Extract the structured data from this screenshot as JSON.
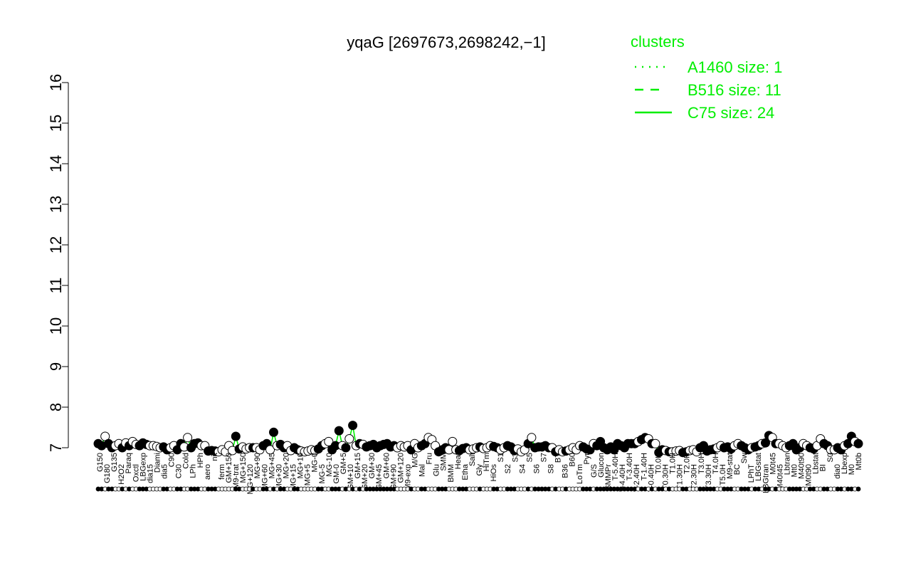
{
  "chart_data": {
    "type": "scatter",
    "title": "yqaG [2697673,2698242,−1]",
    "xlabel": "",
    "ylabel": "",
    "ylim": [
      7,
      16
    ],
    "yticks": [
      "7",
      "8",
      "9",
      "10",
      "11",
      "12",
      "13",
      "14",
      "15",
      "16"
    ],
    "grid": false,
    "legend": {
      "title": "clusters",
      "position": "top-right",
      "color": "#00ee00",
      "entries": [
        {
          "label": "A1460 size: 1",
          "style": "dotted"
        },
        {
          "label": "B516 size: 11",
          "style": "dashed"
        },
        {
          "label": "C75 size: 24",
          "style": "solid"
        }
      ]
    },
    "colors": {
      "series_line": "#00ee00",
      "filled_point": "#000000",
      "open_point": "#ffffff",
      "axis": "#000000"
    },
    "category_labels": [
      "G150",
      "G180",
      "G135",
      "H2O2",
      "Paraq",
      "Oxctl",
      "LBGexp",
      "dia15",
      "Diami",
      "dia5",
      "C90",
      "C30",
      "Cold",
      "LPh",
      "HPh",
      "aero",
      "nit",
      "ferm",
      "GM+150",
      "M9-trat",
      "MG+150",
      "MG+120",
      "MG+90",
      "MG+60",
      "MG+45",
      "MG+30",
      "MG+20",
      "MG+15",
      "MG+10",
      "MG+5",
      "MG-0",
      "MG-5",
      "MG-10",
      "GM-0",
      "GM+5",
      "GM+10",
      "GM+15",
      "GM+20",
      "GM+30",
      "GM+45",
      "GM+60",
      "GM+90",
      "GM+120",
      "M9-exp",
      "M/G",
      "Mal",
      "Fru",
      "Glu",
      "SMM",
      "BMM",
      "Heat",
      "Etha",
      "Salt",
      "Gly",
      "HiTm",
      "HiOs",
      "S1",
      "S2",
      "S3",
      "S4",
      "S5",
      "S6",
      "S7",
      "S8",
      "BT",
      "B36",
      "B60",
      "LoTm",
      "Pyr",
      "G/S",
      "Glucon",
      "SMMPr",
      "T-5.40H",
      "T-4.40H",
      "T-3.40H",
      "T-2.40H",
      "T-1.40H",
      "T-0.40H",
      "T0.0H",
      "T0.30H",
      "T1.0H",
      "T1.30H",
      "T2.0H",
      "T2.30H",
      "T3.0H",
      "T3.30H",
      "T4.0H",
      "T5.0H",
      "M9-stat",
      "BC",
      "Sw",
      "LPhT",
      "LBGstat",
      "LBGtran",
      "M0t45",
      "M40t45",
      "Lbtran",
      "Mt0",
      "M40t90",
      "M0t90",
      "Lbstat",
      "BI",
      "S0",
      "dia0",
      "Lbexp",
      "M0",
      "Mt0b"
    ],
    "points": [
      {
        "x": 1,
        "y": 7.1,
        "f": 1
      },
      {
        "x": 2,
        "y": 7.05,
        "f": 1
      },
      {
        "x": 3,
        "y": 7.28,
        "f": 0
      },
      {
        "x": 4,
        "y": 7.1,
        "f": 1
      },
      {
        "x": 5,
        "y": 7.0,
        "f": 1
      },
      {
        "x": 6,
        "y": 7.05,
        "f": 0
      },
      {
        "x": 7,
        "y": 7.1,
        "f": 0
      },
      {
        "x": 8,
        "y": 7.0,
        "f": 1
      },
      {
        "x": 9,
        "y": 7.12,
        "f": 0
      },
      {
        "x": 10,
        "y": 7.05,
        "f": 1
      },
      {
        "x": 11,
        "y": 7.15,
        "f": 0
      },
      {
        "x": 12,
        "y": 7.08,
        "f": 0
      },
      {
        "x": 13,
        "y": 7.05,
        "f": 1
      },
      {
        "x": 14,
        "y": 7.12,
        "f": 1
      },
      {
        "x": 15,
        "y": 7.08,
        "f": 1
      },
      {
        "x": 16,
        "y": 7.05,
        "f": 0
      },
      {
        "x": 17,
        "y": 7.05,
        "f": 0
      },
      {
        "x": 18,
        "y": 7.03,
        "f": 0
      },
      {
        "x": 19,
        "y": 7.0,
        "f": 0
      },
      {
        "x": 20,
        "y": 7.02,
        "f": 1
      },
      {
        "x": 21,
        "y": 6.95,
        "f": 1
      },
      {
        "x": 22,
        "y": 7.0,
        "f": 0
      },
      {
        "x": 23,
        "y": 7.05,
        "f": 0
      },
      {
        "x": 24,
        "y": 6.95,
        "f": 1
      },
      {
        "x": 25,
        "y": 7.1,
        "f": 1
      },
      {
        "x": 26,
        "y": 7.02,
        "f": 0
      },
      {
        "x": 27,
        "y": 7.25,
        "f": 0
      },
      {
        "x": 28,
        "y": 7.0,
        "f": 1
      },
      {
        "x": 29,
        "y": 7.1,
        "f": 1
      },
      {
        "x": 30,
        "y": 7.12,
        "f": 1
      },
      {
        "x": 31,
        "y": 7.05,
        "f": 0
      },
      {
        "x": 32,
        "y": 7.05,
        "f": 0
      },
      {
        "x": 33,
        "y": 6.92,
        "f": 1
      },
      {
        "x": 34,
        "y": 6.93,
        "f": 1
      },
      {
        "x": 35,
        "y": 6.92,
        "f": 1
      },
      {
        "x": 36,
        "y": 6.9,
        "f": 0
      },
      {
        "x": 37,
        "y": 6.95,
        "f": 0
      },
      {
        "x": 38,
        "y": 6.9,
        "f": 0
      },
      {
        "x": 39,
        "y": 7.05,
        "f": 0
      },
      {
        "x": 40,
        "y": 6.93,
        "f": 0
      },
      {
        "x": 41,
        "y": 7.28,
        "f": 1
      },
      {
        "x": 42,
        "y": 6.97,
        "f": 1
      },
      {
        "x": 43,
        "y": 7.02,
        "f": 0
      },
      {
        "x": 44,
        "y": 6.97,
        "f": 0
      },
      {
        "x": 45,
        "y": 7.0,
        "f": 0
      },
      {
        "x": 46,
        "y": 7.0,
        "f": 1
      },
      {
        "x": 47,
        "y": 7.0,
        "f": 0
      },
      {
        "x": 48,
        "y": 6.95,
        "f": 0
      },
      {
        "x": 49,
        "y": 7.05,
        "f": 1
      },
      {
        "x": 50,
        "y": 7.1,
        "f": 1
      },
      {
        "x": 51,
        "y": 6.95,
        "f": 0
      },
      {
        "x": 52,
        "y": 7.38,
        "f": 1
      },
      {
        "x": 53,
        "y": 7.05,
        "f": 0
      },
      {
        "x": 54,
        "y": 7.08,
        "f": 1
      },
      {
        "x": 55,
        "y": 7.0,
        "f": 1
      },
      {
        "x": 56,
        "y": 7.05,
        "f": 0
      },
      {
        "x": 57,
        "y": 6.93,
        "f": 0
      },
      {
        "x": 58,
        "y": 7.0,
        "f": 1
      },
      {
        "x": 59,
        "y": 6.95,
        "f": 1
      },
      {
        "x": 60,
        "y": 6.92,
        "f": 0
      },
      {
        "x": 61,
        "y": 6.9,
        "f": 0
      },
      {
        "x": 62,
        "y": 6.92,
        "f": 0
      },
      {
        "x": 63,
        "y": 6.95,
        "f": 0
      },
      {
        "x": 64,
        "y": 6.93,
        "f": 0
      },
      {
        "x": 65,
        "y": 6.97,
        "f": 1
      },
      {
        "x": 66,
        "y": 7.05,
        "f": 1
      },
      {
        "x": 67,
        "y": 7.1,
        "f": 0
      },
      {
        "x": 68,
        "y": 7.15,
        "f": 0
      },
      {
        "x": 69,
        "y": 6.95,
        "f": 1
      },
      {
        "x": 70,
        "y": 7.05,
        "f": 1
      },
      {
        "x": 71,
        "y": 7.42,
        "f": 1
      },
      {
        "x": 72,
        "y": 7.05,
        "f": 0
      },
      {
        "x": 73,
        "y": 7.0,
        "f": 1
      },
      {
        "x": 74,
        "y": 7.22,
        "f": 0
      },
      {
        "x": 75,
        "y": 7.55,
        "f": 1
      },
      {
        "x": 76,
        "y": 7.05,
        "f": 0
      },
      {
        "x": 77,
        "y": 7.1,
        "f": 1
      },
      {
        "x": 78,
        "y": 7.08,
        "f": 0
      },
      {
        "x": 79,
        "y": 7.02,
        "f": 1
      },
      {
        "x": 80,
        "y": 7.05,
        "f": 1
      },
      {
        "x": 81,
        "y": 7.08,
        "f": 1
      },
      {
        "x": 82,
        "y": 7.0,
        "f": 1
      },
      {
        "x": 83,
        "y": 7.05,
        "f": 1
      },
      {
        "x": 84,
        "y": 7.08,
        "f": 1
      },
      {
        "x": 85,
        "y": 7.1,
        "f": 1
      },
      {
        "x": 86,
        "y": 7.02,
        "f": 1
      },
      {
        "x": 87,
        "y": 7.05,
        "f": 1
      },
      {
        "x": 88,
        "y": 7.0,
        "f": 0
      },
      {
        "x": 89,
        "y": 7.05,
        "f": 0
      },
      {
        "x": 90,
        "y": 7.02,
        "f": 0
      },
      {
        "x": 91,
        "y": 7.05,
        "f": 0
      },
      {
        "x": 92,
        "y": 6.95,
        "f": 1
      },
      {
        "x": 93,
        "y": 7.1,
        "f": 0
      },
      {
        "x": 94,
        "y": 7.0,
        "f": 0
      },
      {
        "x": 95,
        "y": 7.05,
        "f": 1
      },
      {
        "x": 96,
        "y": 7.1,
        "f": 1
      },
      {
        "x": 97,
        "y": 7.25,
        "f": 0
      },
      {
        "x": 98,
        "y": 7.2,
        "f": 0
      },
      {
        "x": 99,
        "y": 7.05,
        "f": 0
      },
      {
        "x": 100,
        "y": 6.9,
        "f": 1
      },
      {
        "x": 101,
        "y": 6.95,
        "f": 1
      },
      {
        "x": 102,
        "y": 7.0,
        "f": 1
      },
      {
        "x": 103,
        "y": 6.95,
        "f": 0
      },
      {
        "x": 104,
        "y": 7.15,
        "f": 0
      },
      {
        "x": 105,
        "y": 6.95,
        "f": 0
      },
      {
        "x": 106,
        "y": 6.93,
        "f": 1
      },
      {
        "x": 107,
        "y": 6.98,
        "f": 1
      },
      {
        "x": 108,
        "y": 7.0,
        "f": 1
      },
      {
        "x": 109,
        "y": 6.95,
        "f": 0
      },
      {
        "x": 110,
        "y": 6.97,
        "f": 0
      },
      {
        "x": 111,
        "y": 7.0,
        "f": 0
      },
      {
        "x": 112,
        "y": 7.02,
        "f": 1
      },
      {
        "x": 113,
        "y": 6.98,
        "f": 0
      },
      {
        "x": 114,
        "y": 7.0,
        "f": 0
      },
      {
        "x": 115,
        "y": 7.05,
        "f": 0
      },
      {
        "x": 116,
        "y": 7.03,
        "f": 1
      },
      {
        "x": 117,
        "y": 7.0,
        "f": 1
      },
      {
        "x": 118,
        "y": 6.95,
        "f": 0
      },
      {
        "x": 119,
        "y": 7.0,
        "f": 0
      },
      {
        "x": 120,
        "y": 7.05,
        "f": 1
      },
      {
        "x": 121,
        "y": 7.02,
        "f": 1
      },
      {
        "x": 122,
        "y": 6.93,
        "f": 1
      },
      {
        "x": 123,
        "y": 6.97,
        "f": 0
      },
      {
        "x": 124,
        "y": 6.9,
        "f": 0
      },
      {
        "x": 125,
        "y": 6.95,
        "f": 0
      },
      {
        "x": 126,
        "y": 7.1,
        "f": 1
      },
      {
        "x": 127,
        "y": 7.25,
        "f": 0
      },
      {
        "x": 128,
        "y": 7.0,
        "f": 1
      },
      {
        "x": 129,
        "y": 7.02,
        "f": 1
      },
      {
        "x": 130,
        "y": 7.02,
        "f": 1
      },
      {
        "x": 131,
        "y": 7.05,
        "f": 1
      },
      {
        "x": 132,
        "y": 7.0,
        "f": 1
      },
      {
        "x": 133,
        "y": 7.0,
        "f": 0
      },
      {
        "x": 134,
        "y": 6.9,
        "f": 1
      },
      {
        "x": 135,
        "y": 6.95,
        "f": 0
      },
      {
        "x": 136,
        "y": 6.9,
        "f": 0
      },
      {
        "x": 137,
        "y": 6.92,
        "f": 1
      },
      {
        "x": 138,
        "y": 6.95,
        "f": 0
      },
      {
        "x": 139,
        "y": 7.0,
        "f": 0
      },
      {
        "x": 140,
        "y": 6.95,
        "f": 0
      },
      {
        "x": 141,
        "y": 7.05,
        "f": 0
      },
      {
        "x": 142,
        "y": 7.02,
        "f": 1
      },
      {
        "x": 143,
        "y": 6.97,
        "f": 1
      },
      {
        "x": 144,
        "y": 6.95,
        "f": 1
      },
      {
        "x": 145,
        "y": 7.1,
        "f": 0
      },
      {
        "x": 146,
        "y": 7.05,
        "f": 1
      },
      {
        "x": 147,
        "y": 7.15,
        "f": 1
      },
      {
        "x": 148,
        "y": 7.0,
        "f": 1
      },
      {
        "x": 149,
        "y": 6.95,
        "f": 1
      },
      {
        "x": 150,
        "y": 7.02,
        "f": 1
      },
      {
        "x": 151,
        "y": 6.95,
        "f": 1
      },
      {
        "x": 152,
        "y": 7.1,
        "f": 1
      },
      {
        "x": 153,
        "y": 7.05,
        "f": 1
      },
      {
        "x": 154,
        "y": 7.0,
        "f": 1
      },
      {
        "x": 155,
        "y": 7.1,
        "f": 1
      },
      {
        "x": 156,
        "y": 7.1,
        "f": 1
      },
      {
        "x": 157,
        "y": 7.1,
        "f": 1
      },
      {
        "x": 158,
        "y": 7.15,
        "f": 0
      },
      {
        "x": 159,
        "y": 7.2,
        "f": 1
      },
      {
        "x": 160,
        "y": 7.25,
        "f": 1
      },
      {
        "x": 161,
        "y": 7.22,
        "f": 0
      },
      {
        "x": 162,
        "y": 7.1,
        "f": 1
      },
      {
        "x": 163,
        "y": 7.1,
        "f": 0
      },
      {
        "x": 164,
        "y": 6.88,
        "f": 1
      },
      {
        "x": 165,
        "y": 6.95,
        "f": 1
      },
      {
        "x": 166,
        "y": 6.93,
        "f": 0
      },
      {
        "x": 167,
        "y": 6.9,
        "f": 1
      },
      {
        "x": 168,
        "y": 6.9,
        "f": 0
      },
      {
        "x": 169,
        "y": 6.92,
        "f": 0
      },
      {
        "x": 170,
        "y": 6.93,
        "f": 0
      },
      {
        "x": 171,
        "y": 6.88,
        "f": 1
      },
      {
        "x": 172,
        "y": 6.9,
        "f": 1
      },
      {
        "x": 173,
        "y": 6.93,
        "f": 0
      },
      {
        "x": 174,
        "y": 6.95,
        "f": 0
      },
      {
        "x": 175,
        "y": 6.9,
        "f": 0
      },
      {
        "x": 176,
        "y": 7.0,
        "f": 1
      },
      {
        "x": 177,
        "y": 7.05,
        "f": 1
      },
      {
        "x": 178,
        "y": 6.92,
        "f": 1
      },
      {
        "x": 179,
        "y": 6.95,
        "f": 1
      },
      {
        "x": 180,
        "y": 6.97,
        "f": 1
      },
      {
        "x": 181,
        "y": 7.0,
        "f": 0
      },
      {
        "x": 182,
        "y": 7.05,
        "f": 0
      },
      {
        "x": 183,
        "y": 7.0,
        "f": 1
      },
      {
        "x": 184,
        "y": 7.02,
        "f": 1
      },
      {
        "x": 185,
        "y": 6.97,
        "f": 1
      },
      {
        "x": 186,
        "y": 7.05,
        "f": 0
      },
      {
        "x": 187,
        "y": 7.1,
        "f": 0
      },
      {
        "x": 188,
        "y": 7.05,
        "f": 1
      },
      {
        "x": 189,
        "y": 7.0,
        "f": 1
      },
      {
        "x": 190,
        "y": 6.95,
        "f": 1
      },
      {
        "x": 191,
        "y": 7.0,
        "f": 0
      },
      {
        "x": 192,
        "y": 7.02,
        "f": 1
      },
      {
        "x": 193,
        "y": 7.05,
        "f": 1
      },
      {
        "x": 194,
        "y": 7.1,
        "f": 0
      },
      {
        "x": 195,
        "y": 7.12,
        "f": 1
      },
      {
        "x": 196,
        "y": 7.3,
        "f": 1
      },
      {
        "x": 197,
        "y": 7.25,
        "f": 0
      },
      {
        "x": 198,
        "y": 7.1,
        "f": 1
      },
      {
        "x": 199,
        "y": 7.1,
        "f": 0
      },
      {
        "x": 200,
        "y": 7.05,
        "f": 0
      },
      {
        "x": 201,
        "y": 7.0,
        "f": 0
      },
      {
        "x": 202,
        "y": 7.05,
        "f": 1
      },
      {
        "x": 203,
        "y": 7.1,
        "f": 1
      },
      {
        "x": 204,
        "y": 6.95,
        "f": 1
      },
      {
        "x": 205,
        "y": 7.0,
        "f": 1
      },
      {
        "x": 206,
        "y": 7.1,
        "f": 0
      },
      {
        "x": 207,
        "y": 7.05,
        "f": 0
      },
      {
        "x": 208,
        "y": 7.0,
        "f": 1
      },
      {
        "x": 209,
        "y": 6.97,
        "f": 1
      },
      {
        "x": 210,
        "y": 7.05,
        "f": 0
      },
      {
        "x": 211,
        "y": 7.22,
        "f": 0
      },
      {
        "x": 212,
        "y": 7.1,
        "f": 1
      },
      {
        "x": 213,
        "y": 7.05,
        "f": 1
      },
      {
        "x": 214,
        "y": 6.95,
        "f": 0
      },
      {
        "x": 215,
        "y": 6.95,
        "f": 0
      },
      {
        "x": 216,
        "y": 7.0,
        "f": 1
      },
      {
        "x": 217,
        "y": 6.95,
        "f": 1
      },
      {
        "x": 218,
        "y": 7.05,
        "f": 0
      },
      {
        "x": 219,
        "y": 7.1,
        "f": 1
      },
      {
        "x": 220,
        "y": 7.28,
        "f": 1
      },
      {
        "x": 221,
        "y": 7.15,
        "f": 0
      },
      {
        "x": 222,
        "y": 7.1,
        "f": 1
      }
    ]
  }
}
